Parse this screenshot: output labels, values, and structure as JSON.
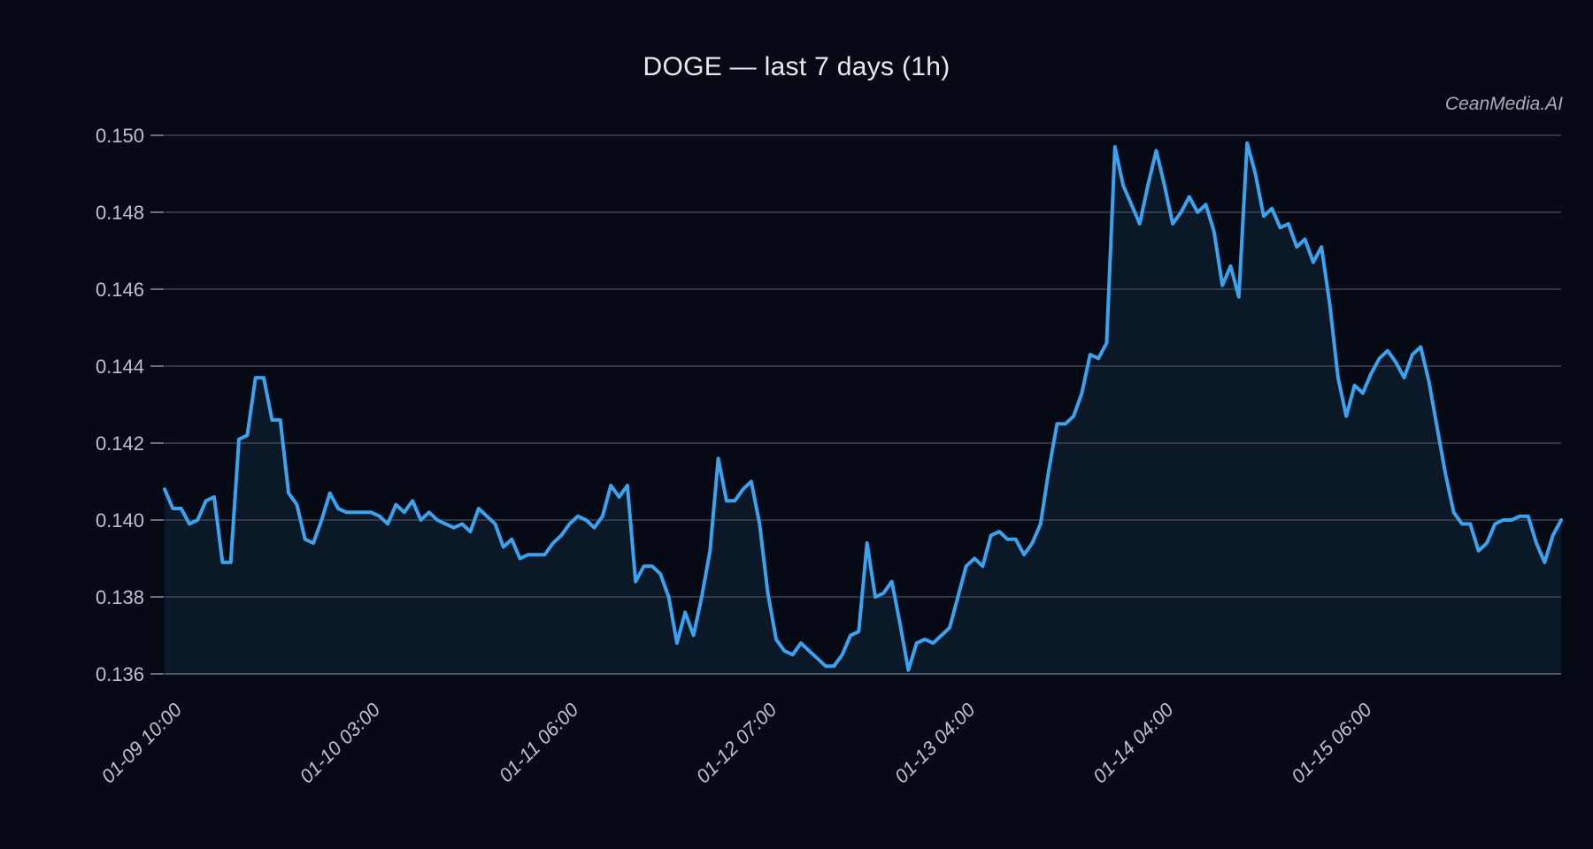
{
  "title": "DOGE — last 7 days (1h)",
  "watermark": "CeanMedia.AI",
  "chart_data": {
    "type": "line",
    "symbol": "DOGE",
    "range": "last 7 days",
    "interval": "1h",
    "title": "DOGE — last 7 days (1h)",
    "ylim": [
      0.136,
      0.150414
    ],
    "yticks": [
      0.15,
      0.148,
      0.146,
      0.144,
      0.142,
      0.14,
      0.138,
      0.136
    ],
    "ytick_labels": [
      "0.150",
      "0.148",
      "0.146",
      "0.144",
      "0.142",
      "0.140",
      "0.138",
      "0.136"
    ],
    "xticks": [
      {
        "index": 2,
        "label": "01-09 10:00"
      },
      {
        "index": 26,
        "label": "01-10 03:00"
      },
      {
        "index": 50,
        "label": "01-11 06:00"
      },
      {
        "index": 74,
        "label": "01-12 07:00"
      },
      {
        "index": 98,
        "label": "01-13 04:00"
      },
      {
        "index": 122,
        "label": "01-14 04:00"
      },
      {
        "index": 146,
        "label": "01-15 06:00"
      }
    ],
    "grid": "horizontal",
    "legend": "none",
    "colors": {
      "background": "#060a14",
      "line": "#3aa2ee",
      "area": "rgba(58,162,238,0.09)",
      "grid": "#3d4452",
      "axis_edge": "#4d5668",
      "tick_mark": "#667082",
      "tick_label": "#bdc1ca",
      "title": "#e7e9ef",
      "watermark": "#a9aeb9"
    },
    "values": [
      0.1408,
      0.1403,
      0.1403,
      0.1399,
      0.14,
      0.1405,
      0.1406,
      0.1389,
      0.1389,
      0.1421,
      0.1422,
      0.1437,
      0.1437,
      0.1426,
      0.1426,
      0.1407,
      0.1404,
      0.1395,
      0.1394,
      0.14,
      0.1407,
      0.1403,
      0.1402,
      0.1402,
      0.1402,
      0.1402,
      0.1401,
      0.1399,
      0.1404,
      0.1402,
      0.1405,
      0.14,
      0.1402,
      0.14,
      0.1399,
      0.1398,
      0.1399,
      0.1397,
      0.1403,
      0.1401,
      0.1399,
      0.1393,
      0.1395,
      0.139,
      0.1391,
      0.1391,
      0.1391,
      0.1394,
      0.1396,
      0.1399,
      0.1401,
      0.14,
      0.1398,
      0.1401,
      0.1409,
      0.1406,
      0.1409,
      0.1384,
      0.1388,
      0.1388,
      0.1386,
      0.138,
      0.1368,
      0.1376,
      0.137,
      0.138,
      0.1392,
      0.1416,
      0.1405,
      0.1405,
      0.1408,
      0.141,
      0.1399,
      0.1381,
      0.1369,
      0.1366,
      0.1365,
      0.1368,
      0.1366,
      0.1364,
      0.1362,
      0.1362,
      0.1365,
      0.137,
      0.1371,
      0.1394,
      0.138,
      0.1381,
      0.1384,
      0.1373,
      0.1361,
      0.1368,
      0.1369,
      0.1368,
      0.137,
      0.1372,
      0.138,
      0.1388,
      0.139,
      0.1388,
      0.1396,
      0.1397,
      0.1395,
      0.1395,
      0.1391,
      0.1394,
      0.1399,
      0.1413,
      0.1425,
      0.1425,
      0.1427,
      0.1433,
      0.1443,
      0.1442,
      0.1446,
      0.1497,
      0.1487,
      0.1482,
      0.1477,
      0.1487,
      0.1496,
      0.1487,
      0.1477,
      0.148,
      0.1484,
      0.148,
      0.1482,
      0.1475,
      0.1461,
      0.1466,
      0.1458,
      0.1498,
      0.149,
      0.1479,
      0.1481,
      0.1476,
      0.1477,
      0.1471,
      0.1473,
      0.1467,
      0.1471,
      0.1456,
      0.1437,
      0.1427,
      0.1435,
      0.1433,
      0.1438,
      0.1442,
      0.1444,
      0.1441,
      0.1437,
      0.1443,
      0.1445,
      0.1436,
      0.1424,
      0.1412,
      0.1402,
      0.1399,
      0.1399,
      0.1392,
      0.1394,
      0.1399,
      0.14,
      0.14,
      0.1401,
      0.1401,
      0.1394,
      0.1389,
      0.1396,
      0.14
    ]
  }
}
